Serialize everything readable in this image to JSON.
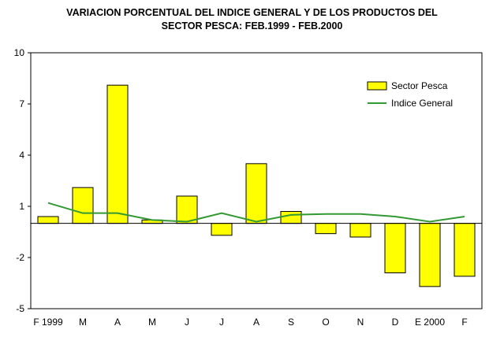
{
  "chart_data": {
    "type": "bar",
    "title_lines": [
      "VARIACION PORCENTUAL DEL INDICE GENERAL Y DE LOS PRODUCTOS DEL",
      "SECTOR PESCA: FEB.1999 - FEB.2000"
    ],
    "categories": [
      "F 1999",
      "M",
      "A",
      "M",
      "J",
      "J",
      "A",
      "S",
      "O",
      "N",
      "D",
      "E 2000",
      "F"
    ],
    "series": [
      {
        "name": "Sector Pesca",
        "kind": "bar",
        "color": "#ffff00",
        "values": [
          0.4,
          2.1,
          8.1,
          0.2,
          1.6,
          -0.7,
          3.5,
          0.7,
          -0.6,
          -0.8,
          -2.9,
          -3.7,
          -3.1
        ]
      },
      {
        "name": "Indice General",
        "kind": "line",
        "color": "#339933",
        "values": [
          1.2,
          0.6,
          0.6,
          0.2,
          0.1,
          0.6,
          0.1,
          0.5,
          0.55,
          0.55,
          0.4,
          0.1,
          0.4
        ]
      }
    ],
    "yticks": [
      10,
      7,
      4,
      1,
      -2,
      -5
    ],
    "ylim": [
      -5,
      10
    ],
    "legend_position": "top-right",
    "grid": false
  }
}
